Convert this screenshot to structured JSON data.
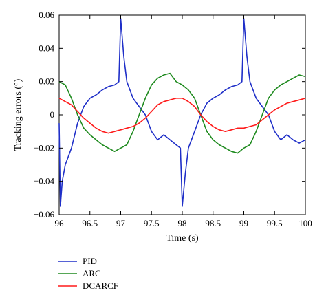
{
  "chart_data": {
    "type": "line",
    "title": "",
    "xlabel": "Time (s)",
    "ylabel": "Tracking errors (°)",
    "xlim": [
      96,
      100
    ],
    "ylim": [
      -0.06,
      0.06
    ],
    "x_ticks": [
      96,
      96.5,
      97,
      97.5,
      98,
      98.5,
      99,
      99.5,
      100
    ],
    "x_tick_labels": [
      "96",
      "96.5",
      "97",
      "97.5",
      "98",
      "98.5",
      "99",
      "99.5",
      "100"
    ],
    "y_ticks": [
      -0.06,
      -0.04,
      -0.02,
      0,
      0.02,
      0.04,
      0.06
    ],
    "y_tick_labels": [
      "−0.06",
      "−0.04",
      "−0.02",
      "0",
      "0.02",
      "0.04",
      "0.06"
    ],
    "grid": false,
    "legend_position": "bottom-left, below plot",
    "series": [
      {
        "name": "PID",
        "color": "#1f2fc8",
        "x": [
          96.0,
          96.02,
          96.05,
          96.1,
          96.2,
          96.3,
          96.4,
          96.5,
          96.6,
          96.7,
          96.8,
          96.9,
          96.97,
          97.0,
          97.05,
          97.1,
          97.2,
          97.3,
          97.4,
          97.5,
          97.6,
          97.7,
          97.8,
          97.9,
          97.97,
          98.0,
          98.05,
          98.1,
          98.2,
          98.3,
          98.4,
          98.5,
          98.6,
          98.7,
          98.8,
          98.9,
          98.97,
          99.0,
          99.05,
          99.1,
          99.2,
          99.3,
          99.4,
          99.5,
          99.6,
          99.7,
          99.8,
          99.9,
          100.0
        ],
        "y": [
          -0.005,
          -0.055,
          -0.04,
          -0.03,
          -0.02,
          -0.005,
          0.005,
          0.01,
          0.012,
          0.015,
          0.017,
          0.018,
          0.02,
          0.058,
          0.035,
          0.02,
          0.01,
          0.005,
          0.0,
          -0.01,
          -0.015,
          -0.012,
          -0.015,
          -0.018,
          -0.02,
          -0.055,
          -0.035,
          -0.02,
          -0.01,
          0.0,
          0.007,
          0.01,
          0.012,
          0.015,
          0.017,
          0.018,
          0.02,
          0.058,
          0.035,
          0.02,
          0.01,
          0.005,
          0.0,
          -0.01,
          -0.015,
          -0.012,
          -0.015,
          -0.017,
          -0.015
        ]
      },
      {
        "name": "ARC",
        "color": "#1e8a1e",
        "x": [
          96.0,
          96.1,
          96.2,
          96.3,
          96.4,
          96.5,
          96.6,
          96.7,
          96.8,
          96.9,
          97.0,
          97.1,
          97.2,
          97.3,
          97.4,
          97.5,
          97.6,
          97.7,
          97.8,
          97.9,
          98.0,
          98.1,
          98.2,
          98.3,
          98.4,
          98.5,
          98.6,
          98.7,
          98.8,
          98.9,
          99.0,
          99.1,
          99.2,
          99.3,
          99.4,
          99.5,
          99.6,
          99.7,
          99.8,
          99.9,
          100.0
        ],
        "y": [
          0.02,
          0.018,
          0.01,
          0.0,
          -0.008,
          -0.012,
          -0.015,
          -0.018,
          -0.02,
          -0.022,
          -0.02,
          -0.018,
          -0.01,
          0.0,
          0.01,
          0.018,
          0.022,
          0.024,
          0.025,
          0.02,
          0.018,
          0.015,
          0.01,
          0.0,
          -0.01,
          -0.015,
          -0.018,
          -0.02,
          -0.022,
          -0.023,
          -0.02,
          -0.018,
          -0.01,
          0.0,
          0.01,
          0.015,
          0.018,
          0.02,
          0.022,
          0.024,
          0.023
        ]
      },
      {
        "name": "DCARCF",
        "color": "#ff1a1a",
        "x": [
          96.0,
          96.1,
          96.2,
          96.3,
          96.4,
          96.5,
          96.6,
          96.7,
          96.8,
          96.9,
          97.0,
          97.1,
          97.2,
          97.3,
          97.4,
          97.5,
          97.6,
          97.7,
          97.8,
          97.9,
          98.0,
          98.1,
          98.2,
          98.3,
          98.4,
          98.5,
          98.6,
          98.7,
          98.8,
          98.9,
          99.0,
          99.1,
          99.2,
          99.3,
          99.4,
          99.5,
          99.6,
          99.7,
          99.8,
          99.9,
          100.0
        ],
        "y": [
          0.01,
          0.008,
          0.006,
          0.002,
          -0.002,
          -0.005,
          -0.008,
          -0.01,
          -0.011,
          -0.01,
          -0.009,
          -0.008,
          -0.007,
          -0.005,
          -0.002,
          0.002,
          0.006,
          0.008,
          0.009,
          0.01,
          0.01,
          0.008,
          0.005,
          0.0,
          -0.004,
          -0.007,
          -0.009,
          -0.01,
          -0.009,
          -0.008,
          -0.008,
          -0.007,
          -0.006,
          -0.003,
          0.0,
          0.003,
          0.005,
          0.007,
          0.008,
          0.009,
          0.01
        ]
      }
    ]
  }
}
